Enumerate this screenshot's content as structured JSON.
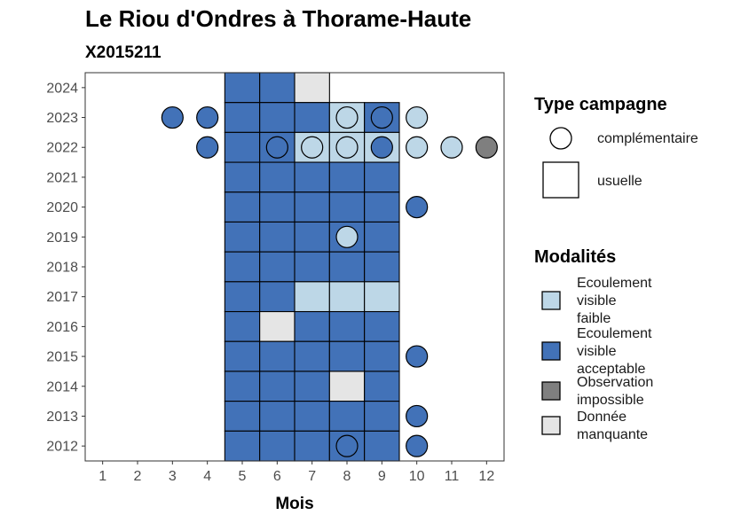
{
  "chart_data": {
    "type": "heatmap",
    "title": "Le Riou d'Ondres à Thorame-Haute",
    "subtitle": "X2015211",
    "xlabel": "Mois",
    "ylabel": "",
    "x_ticks": [
      "1",
      "2",
      "3",
      "4",
      "5",
      "6",
      "7",
      "8",
      "9",
      "10",
      "11",
      "12"
    ],
    "y_ticks": [
      "2024",
      "2023",
      "2022",
      "2021",
      "2020",
      "2019",
      "2018",
      "2017",
      "2016",
      "2015",
      "2014",
      "2013",
      "2012"
    ],
    "xlim": [
      0.5,
      12.5
    ],
    "ylim": [
      2011.5,
      2024.5
    ],
    "grid": false,
    "legend_position": "right",
    "legend_campaign": {
      "title": "Type campagne",
      "items": [
        {
          "key": "complementaire",
          "label": "complémentaire",
          "shape": "circle"
        },
        {
          "key": "usuelle",
          "label": "usuelle",
          "shape": "square"
        }
      ]
    },
    "legend_modalities": {
      "title": "Modalités",
      "items": [
        {
          "key": "faible",
          "lines": [
            "Ecoulement",
            "visible",
            "faible"
          ],
          "color": "#bdd7e7"
        },
        {
          "key": "acceptable",
          "lines": [
            "Ecoulement",
            "visible",
            "acceptable"
          ],
          "color": "#4272b8"
        },
        {
          "key": "impossible",
          "lines": [
            "Observation",
            "impossible"
          ],
          "color": "#7f7f7f"
        },
        {
          "key": "manquante",
          "lines": [
            "Donnée",
            "manquante"
          ],
          "color": "#e5e5e5"
        }
      ]
    },
    "usual_cells": [
      {
        "year": 2024,
        "month": 5,
        "mod": "acceptable"
      },
      {
        "year": 2024,
        "month": 6,
        "mod": "acceptable"
      },
      {
        "year": 2024,
        "month": 7,
        "mod": "manquante"
      },
      {
        "year": 2023,
        "month": 5,
        "mod": "acceptable"
      },
      {
        "year": 2023,
        "month": 6,
        "mod": "acceptable"
      },
      {
        "year": 2023,
        "month": 7,
        "mod": "acceptable"
      },
      {
        "year": 2023,
        "month": 8,
        "mod": "faible"
      },
      {
        "year": 2023,
        "month": 9,
        "mod": "acceptable"
      },
      {
        "year": 2022,
        "month": 5,
        "mod": "acceptable"
      },
      {
        "year": 2022,
        "month": 6,
        "mod": "acceptable"
      },
      {
        "year": 2022,
        "month": 7,
        "mod": "faible"
      },
      {
        "year": 2022,
        "month": 8,
        "mod": "faible"
      },
      {
        "year": 2022,
        "month": 9,
        "mod": "faible"
      },
      {
        "year": 2021,
        "month": 5,
        "mod": "acceptable"
      },
      {
        "year": 2021,
        "month": 6,
        "mod": "acceptable"
      },
      {
        "year": 2021,
        "month": 7,
        "mod": "acceptable"
      },
      {
        "year": 2021,
        "month": 8,
        "mod": "acceptable"
      },
      {
        "year": 2021,
        "month": 9,
        "mod": "acceptable"
      },
      {
        "year": 2020,
        "month": 5,
        "mod": "acceptable"
      },
      {
        "year": 2020,
        "month": 6,
        "mod": "acceptable"
      },
      {
        "year": 2020,
        "month": 7,
        "mod": "acceptable"
      },
      {
        "year": 2020,
        "month": 8,
        "mod": "acceptable"
      },
      {
        "year": 2020,
        "month": 9,
        "mod": "acceptable"
      },
      {
        "year": 2019,
        "month": 5,
        "mod": "acceptable"
      },
      {
        "year": 2019,
        "month": 6,
        "mod": "acceptable"
      },
      {
        "year": 2019,
        "month": 7,
        "mod": "acceptable"
      },
      {
        "year": 2019,
        "month": 8,
        "mod": "acceptable"
      },
      {
        "year": 2019,
        "month": 9,
        "mod": "acceptable"
      },
      {
        "year": 2018,
        "month": 5,
        "mod": "acceptable"
      },
      {
        "year": 2018,
        "month": 6,
        "mod": "acceptable"
      },
      {
        "year": 2018,
        "month": 7,
        "mod": "acceptable"
      },
      {
        "year": 2018,
        "month": 8,
        "mod": "acceptable"
      },
      {
        "year": 2018,
        "month": 9,
        "mod": "acceptable"
      },
      {
        "year": 2017,
        "month": 5,
        "mod": "acceptable"
      },
      {
        "year": 2017,
        "month": 6,
        "mod": "acceptable"
      },
      {
        "year": 2017,
        "month": 7,
        "mod": "faible"
      },
      {
        "year": 2017,
        "month": 8,
        "mod": "faible"
      },
      {
        "year": 2017,
        "month": 9,
        "mod": "faible"
      },
      {
        "year": 2016,
        "month": 5,
        "mod": "acceptable"
      },
      {
        "year": 2016,
        "month": 6,
        "mod": "manquante"
      },
      {
        "year": 2016,
        "month": 7,
        "mod": "acceptable"
      },
      {
        "year": 2016,
        "month": 8,
        "mod": "acceptable"
      },
      {
        "year": 2016,
        "month": 9,
        "mod": "acceptable"
      },
      {
        "year": 2015,
        "month": 5,
        "mod": "acceptable"
      },
      {
        "year": 2015,
        "month": 6,
        "mod": "acceptable"
      },
      {
        "year": 2015,
        "month": 7,
        "mod": "acceptable"
      },
      {
        "year": 2015,
        "month": 8,
        "mod": "acceptable"
      },
      {
        "year": 2015,
        "month": 9,
        "mod": "acceptable"
      },
      {
        "year": 2014,
        "month": 5,
        "mod": "acceptable"
      },
      {
        "year": 2014,
        "month": 6,
        "mod": "acceptable"
      },
      {
        "year": 2014,
        "month": 7,
        "mod": "acceptable"
      },
      {
        "year": 2014,
        "month": 8,
        "mod": "manquante"
      },
      {
        "year": 2014,
        "month": 9,
        "mod": "acceptable"
      },
      {
        "year": 2013,
        "month": 5,
        "mod": "acceptable"
      },
      {
        "year": 2013,
        "month": 6,
        "mod": "acceptable"
      },
      {
        "year": 2013,
        "month": 7,
        "mod": "acceptable"
      },
      {
        "year": 2013,
        "month": 8,
        "mod": "acceptable"
      },
      {
        "year": 2013,
        "month": 9,
        "mod": "acceptable"
      },
      {
        "year": 2012,
        "month": 5,
        "mod": "acceptable"
      },
      {
        "year": 2012,
        "month": 6,
        "mod": "acceptable"
      },
      {
        "year": 2012,
        "month": 7,
        "mod": "acceptable"
      },
      {
        "year": 2012,
        "month": 8,
        "mod": "acceptable"
      },
      {
        "year": 2012,
        "month": 9,
        "mod": "acceptable"
      }
    ],
    "complementary_points": [
      {
        "year": 2023,
        "month": 3,
        "mod": "acceptable"
      },
      {
        "year": 2023,
        "month": 4,
        "mod": "acceptable"
      },
      {
        "year": 2023,
        "month": 8,
        "mod": "faible"
      },
      {
        "year": 2023,
        "month": 9,
        "mod": "acceptable"
      },
      {
        "year": 2023,
        "month": 10,
        "mod": "faible"
      },
      {
        "year": 2022,
        "month": 4,
        "mod": "acceptable"
      },
      {
        "year": 2022,
        "month": 6,
        "mod": "acceptable"
      },
      {
        "year": 2022,
        "month": 7,
        "mod": "faible"
      },
      {
        "year": 2022,
        "month": 8,
        "mod": "faible"
      },
      {
        "year": 2022,
        "month": 9,
        "mod": "acceptable"
      },
      {
        "year": 2022,
        "month": 10,
        "mod": "faible"
      },
      {
        "year": 2022,
        "month": 11,
        "mod": "faible"
      },
      {
        "year": 2022,
        "month": 12,
        "mod": "impossible"
      },
      {
        "year": 2020,
        "month": 10,
        "mod": "acceptable"
      },
      {
        "year": 2019,
        "month": 8,
        "mod": "faible"
      },
      {
        "year": 2015,
        "month": 10,
        "mod": "acceptable"
      },
      {
        "year": 2013,
        "month": 10,
        "mod": "acceptable"
      },
      {
        "year": 2012,
        "month": 8,
        "mod": "acceptable"
      },
      {
        "year": 2012,
        "month": 10,
        "mod": "acceptable"
      }
    ]
  }
}
